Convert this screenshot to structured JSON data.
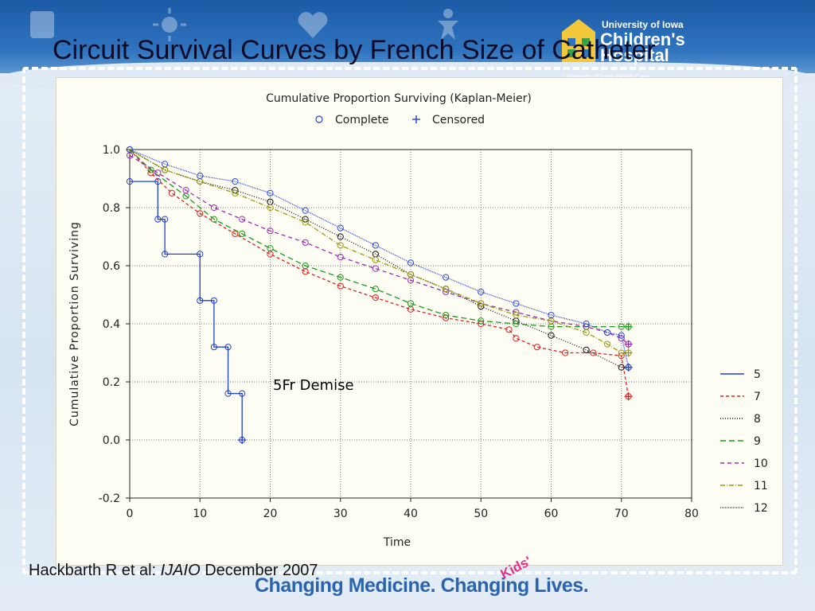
{
  "slide": {
    "title": "Circuit Survival Curves by French Size of Catheter",
    "logo": {
      "top": "University of Iowa",
      "main": "Children's Hospital",
      "sub": "University of Iowa Health Care"
    },
    "citation": {
      "prefix": "Hackbarth R et al: ",
      "journal": "IJAIO",
      "suffix": " December 2007"
    },
    "tagline": "Changing Medicine. Changing Lives.",
    "tagline_accent": "Kids'",
    "colors": {
      "band": "#1c5aa6",
      "title": "#0b0b28",
      "tagline": "#2a64b0",
      "accent": "#e0338a"
    }
  },
  "chart_data": {
    "type": "line",
    "title": "Cumulative Proportion Surviving (Kaplan-Meier)",
    "marker_legend": [
      {
        "symbol": "o",
        "label": "Complete"
      },
      {
        "symbol": "+",
        "label": "Censored"
      }
    ],
    "xlabel": "Time",
    "ylabel": "Cumulative Proportion Surviving",
    "xlim": [
      0,
      80
    ],
    "ylim": [
      -0.2,
      1.0
    ],
    "xticks": [
      "0",
      "10",
      "20",
      "30",
      "40",
      "50",
      "60",
      "70",
      "80"
    ],
    "yticks": [
      "-0.2",
      "0.0",
      "0.2",
      "0.4",
      "0.6",
      "0.8",
      "1.0"
    ],
    "grid": true,
    "legend_position": "right",
    "annotation": "5Fr Demise",
    "series": [
      {
        "name": "5",
        "color": "#1f3fd6",
        "dash": "solid",
        "points": [
          [
            0,
            0.89
          ],
          [
            4,
            0.89
          ],
          [
            4,
            0.76
          ],
          [
            5,
            0.76
          ],
          [
            5,
            0.64
          ],
          [
            10,
            0.64
          ],
          [
            10,
            0.48
          ],
          [
            12,
            0.48
          ],
          [
            12,
            0.32
          ],
          [
            14,
            0.32
          ],
          [
            14,
            0.16
          ],
          [
            16,
            0.16
          ],
          [
            16,
            0.0
          ]
        ]
      },
      {
        "name": "7",
        "color": "#e02020",
        "dash": "4,3",
        "points": [
          [
            0,
            1.0
          ],
          [
            3,
            0.92
          ],
          [
            6,
            0.85
          ],
          [
            10,
            0.78
          ],
          [
            15,
            0.71
          ],
          [
            20,
            0.64
          ],
          [
            25,
            0.58
          ],
          [
            30,
            0.53
          ],
          [
            35,
            0.49
          ],
          [
            40,
            0.45
          ],
          [
            45,
            0.42
          ],
          [
            50,
            0.4
          ],
          [
            54,
            0.38
          ],
          [
            55,
            0.35
          ],
          [
            58,
            0.32
          ],
          [
            62,
            0.3
          ],
          [
            66,
            0.3
          ],
          [
            70,
            0.29
          ],
          [
            71,
            0.15
          ]
        ]
      },
      {
        "name": "8",
        "color": "#111111",
        "dash": "1,2",
        "points": [
          [
            0,
            1.0
          ],
          [
            5,
            0.93
          ],
          [
            10,
            0.89
          ],
          [
            15,
            0.86
          ],
          [
            20,
            0.82
          ],
          [
            25,
            0.76
          ],
          [
            30,
            0.7
          ],
          [
            35,
            0.64
          ],
          [
            40,
            0.57
          ],
          [
            45,
            0.52
          ],
          [
            50,
            0.46
          ],
          [
            55,
            0.41
          ],
          [
            60,
            0.36
          ],
          [
            65,
            0.31
          ],
          [
            70,
            0.25
          ],
          [
            71,
            0.25
          ]
        ]
      },
      {
        "name": "9",
        "color": "#1a9a1a",
        "dash": "7,4",
        "points": [
          [
            0,
            1.0
          ],
          [
            3,
            0.93
          ],
          [
            8,
            0.84
          ],
          [
            12,
            0.76
          ],
          [
            16,
            0.71
          ],
          [
            20,
            0.66
          ],
          [
            25,
            0.6
          ],
          [
            30,
            0.56
          ],
          [
            35,
            0.52
          ],
          [
            40,
            0.47
          ],
          [
            45,
            0.43
          ],
          [
            50,
            0.41
          ],
          [
            55,
            0.4
          ],
          [
            60,
            0.39
          ],
          [
            65,
            0.39
          ],
          [
            70,
            0.39
          ],
          [
            71,
            0.39
          ]
        ]
      },
      {
        "name": "10",
        "color": "#9a2ab0",
        "dash": "5,4",
        "points": [
          [
            0,
            0.98
          ],
          [
            4,
            0.92
          ],
          [
            8,
            0.86
          ],
          [
            12,
            0.8
          ],
          [
            16,
            0.76
          ],
          [
            20,
            0.72
          ],
          [
            25,
            0.68
          ],
          [
            30,
            0.63
          ],
          [
            35,
            0.59
          ],
          [
            40,
            0.55
          ],
          [
            45,
            0.51
          ],
          [
            50,
            0.47
          ],
          [
            55,
            0.44
          ],
          [
            60,
            0.41
          ],
          [
            65,
            0.39
          ],
          [
            68,
            0.37
          ],
          [
            70,
            0.35
          ],
          [
            71,
            0.33
          ]
        ]
      },
      {
        "name": "11",
        "color": "#9a9a10",
        "dash": "6,2,1,2",
        "points": [
          [
            0,
            1.0
          ],
          [
            5,
            0.93
          ],
          [
            10,
            0.89
          ],
          [
            15,
            0.85
          ],
          [
            20,
            0.8
          ],
          [
            25,
            0.75
          ],
          [
            30,
            0.67
          ],
          [
            35,
            0.62
          ],
          [
            40,
            0.57
          ],
          [
            45,
            0.52
          ],
          [
            50,
            0.47
          ],
          [
            55,
            0.43
          ],
          [
            60,
            0.41
          ],
          [
            65,
            0.37
          ],
          [
            68,
            0.33
          ],
          [
            70,
            0.3
          ],
          [
            71,
            0.3
          ]
        ]
      },
      {
        "name": "12",
        "color": "#2a4ae0",
        "dash": "1,1",
        "points": [
          [
            0,
            1.0
          ],
          [
            5,
            0.95
          ],
          [
            10,
            0.91
          ],
          [
            15,
            0.89
          ],
          [
            20,
            0.85
          ],
          [
            25,
            0.79
          ],
          [
            30,
            0.73
          ],
          [
            35,
            0.67
          ],
          [
            40,
            0.61
          ],
          [
            45,
            0.56
          ],
          [
            50,
            0.51
          ],
          [
            55,
            0.47
          ],
          [
            60,
            0.43
          ],
          [
            65,
            0.4
          ],
          [
            68,
            0.37
          ],
          [
            70,
            0.36
          ],
          [
            71,
            0.25
          ]
        ]
      }
    ]
  }
}
